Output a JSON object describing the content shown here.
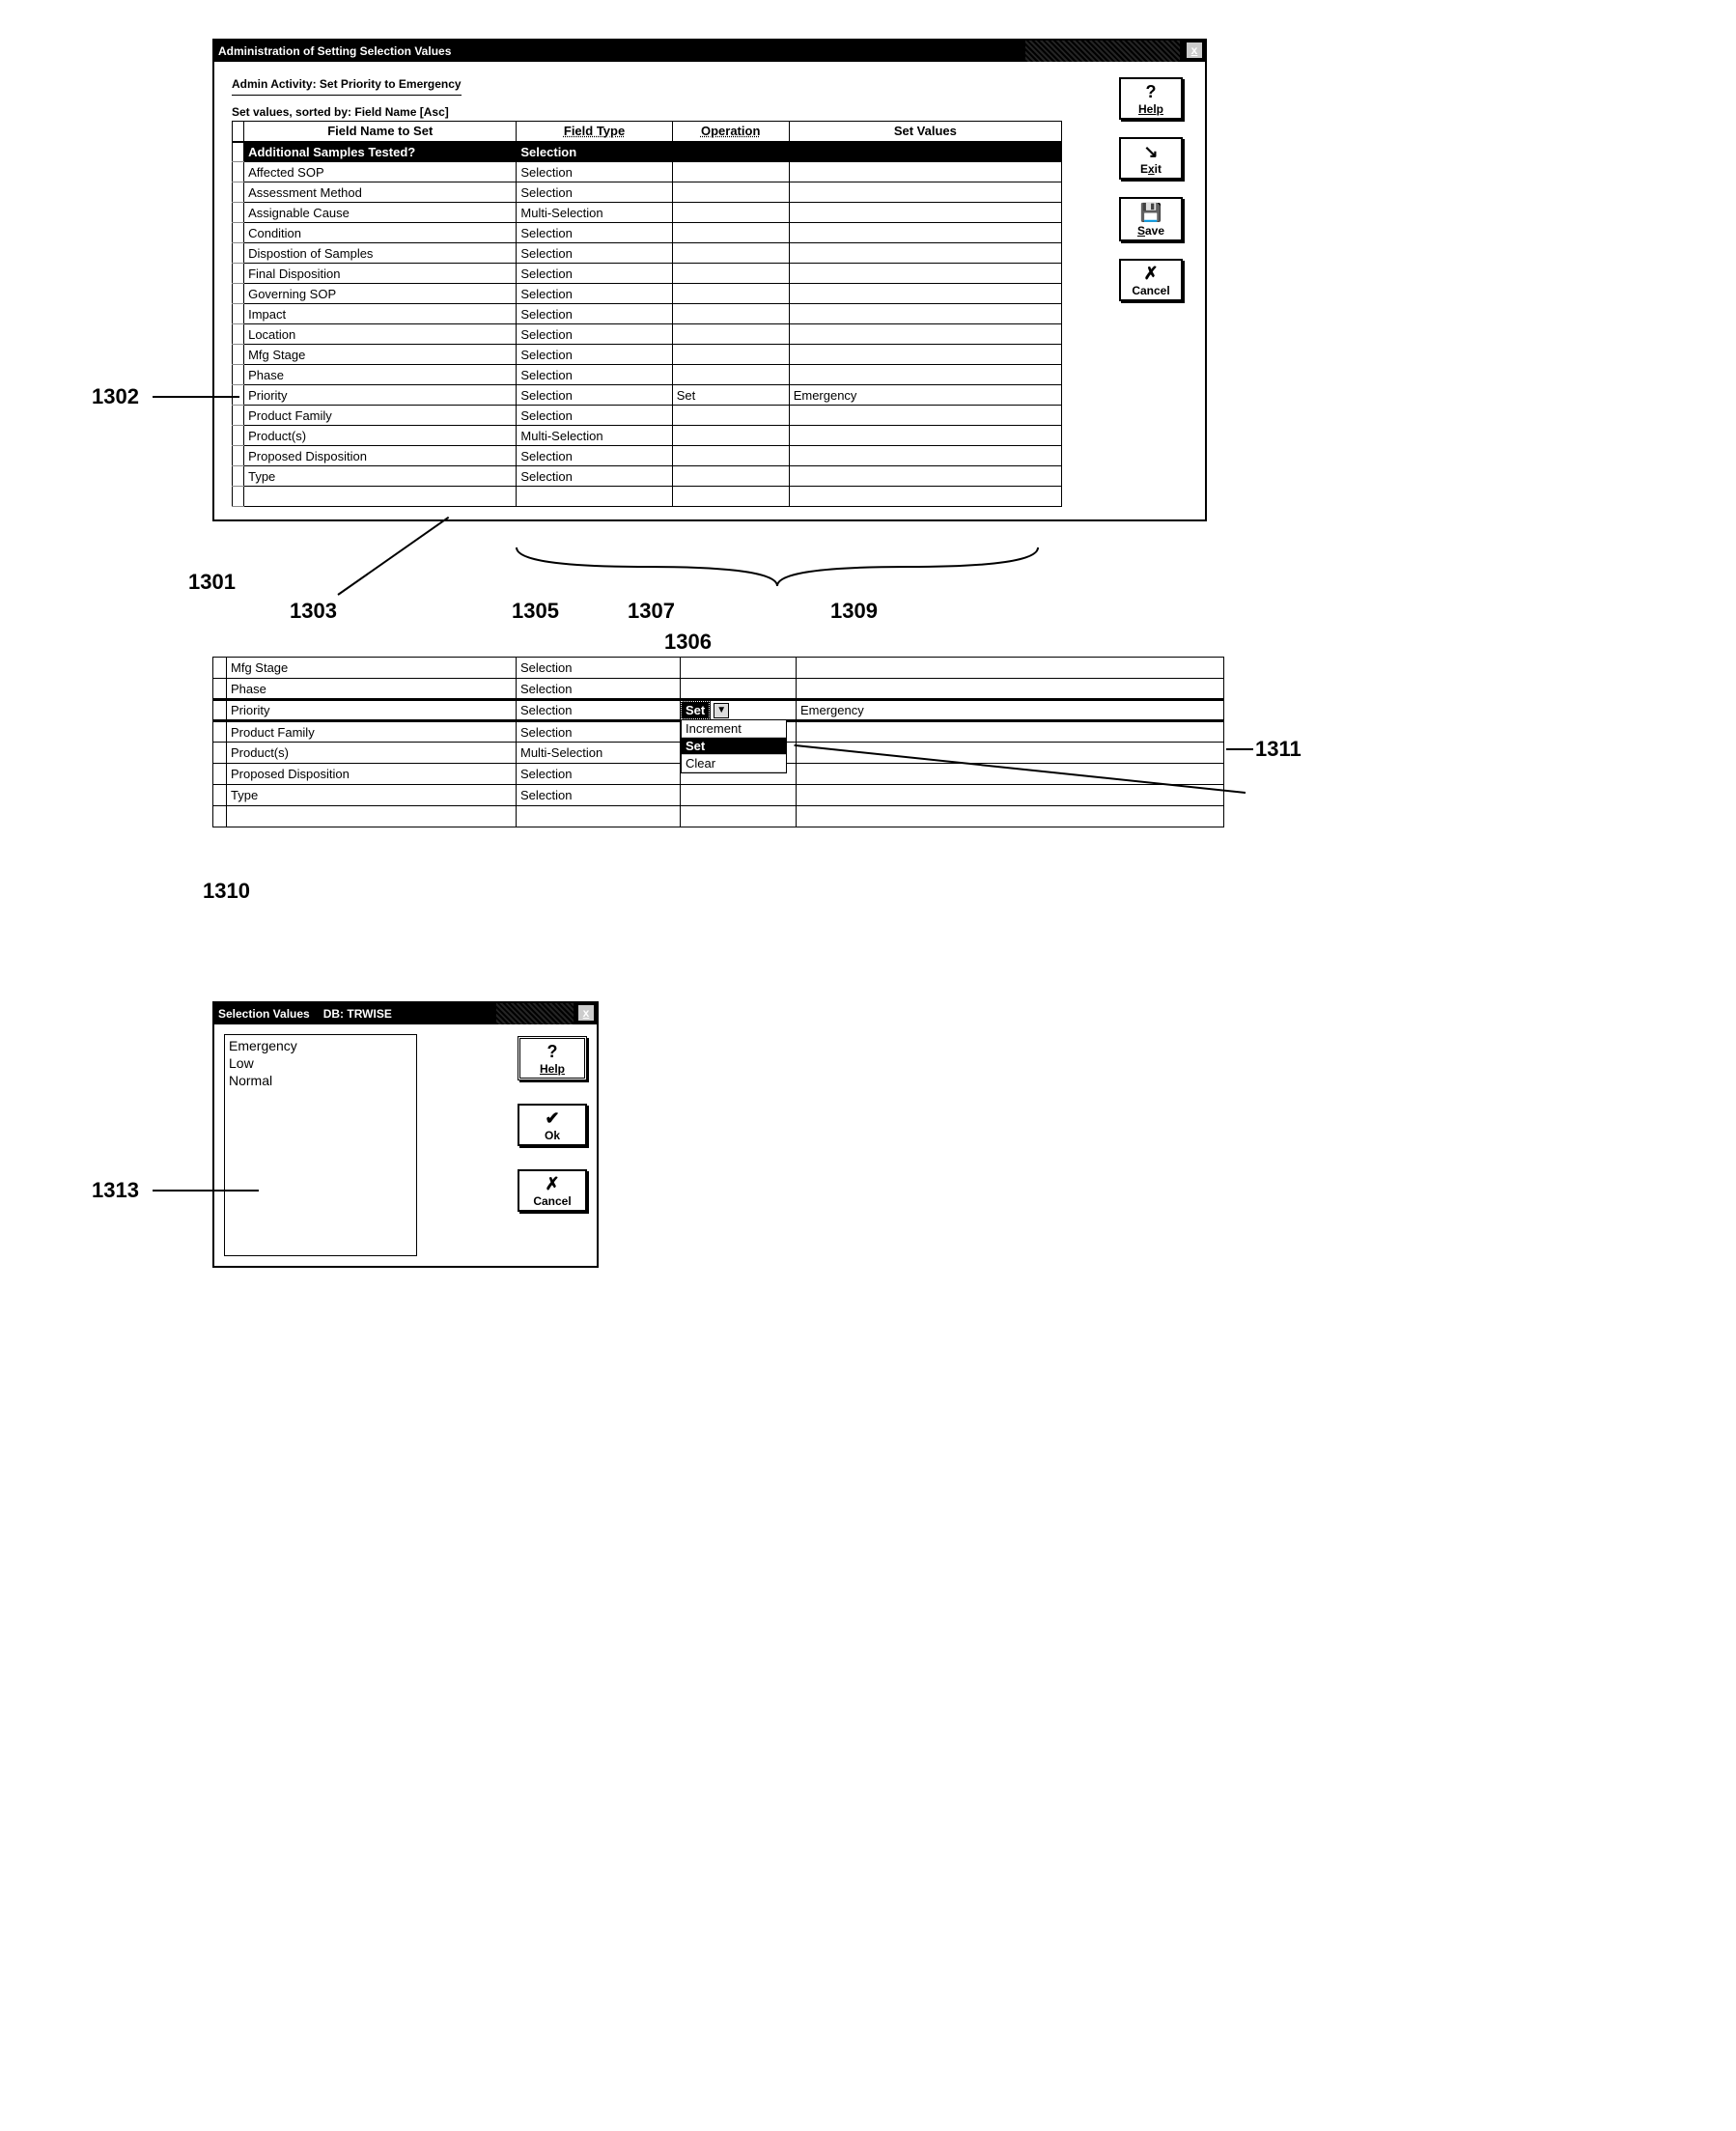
{
  "window1": {
    "title": "Administration of Setting Selection Values",
    "subtitle": "Admin Activity: Set Priority to Emergency",
    "sort_label": "Set values, sorted by: Field Name [Asc]",
    "columns": {
      "name": "Field Name to Set",
      "type": "Field Type",
      "op": "Operation",
      "val": "Set Values"
    },
    "rows": [
      {
        "name": "Additional Samples Tested?",
        "type": "Selection",
        "op": "",
        "val": "",
        "selected": true
      },
      {
        "name": "Affected SOP",
        "type": "Selection",
        "op": "",
        "val": ""
      },
      {
        "name": "Assessment Method",
        "type": "Selection",
        "op": "",
        "val": ""
      },
      {
        "name": "Assignable Cause",
        "type": "Multi-Selection",
        "op": "",
        "val": ""
      },
      {
        "name": "Condition",
        "type": "Selection",
        "op": "",
        "val": ""
      },
      {
        "name": "Dispostion of Samples",
        "type": "Selection",
        "op": "",
        "val": ""
      },
      {
        "name": "Final Disposition",
        "type": "Selection",
        "op": "",
        "val": ""
      },
      {
        "name": "Governing SOP",
        "type": "Selection",
        "op": "",
        "val": ""
      },
      {
        "name": "Impact",
        "type": "Selection",
        "op": "",
        "val": ""
      },
      {
        "name": "Location",
        "type": "Selection",
        "op": "",
        "val": ""
      },
      {
        "name": "Mfg Stage",
        "type": "Selection",
        "op": "",
        "val": ""
      },
      {
        "name": "Phase",
        "type": "Selection",
        "op": "",
        "val": ""
      },
      {
        "name": "Priority",
        "type": "Selection",
        "op": "Set",
        "val": "Emergency"
      },
      {
        "name": "Product Family",
        "type": "Selection",
        "op": "",
        "val": ""
      },
      {
        "name": "Product(s)",
        "type": "Multi-Selection",
        "op": "",
        "val": ""
      },
      {
        "name": "Proposed Disposition",
        "type": "Selection",
        "op": "",
        "val": ""
      },
      {
        "name": "Type",
        "type": "Selection",
        "op": "",
        "val": ""
      },
      {
        "name": "",
        "type": "",
        "op": "",
        "val": ""
      }
    ],
    "buttons": {
      "help": "Help",
      "exit": "Exit",
      "save": "Save",
      "cancel": "Cancel"
    }
  },
  "callouts": {
    "c1301": "1301",
    "c1302": "1302",
    "c1303": "1303",
    "c1305": "1305",
    "c1306": "1306",
    "c1307": "1307",
    "c1309": "1309",
    "c1310": "1310",
    "c1311": "1311",
    "c1313": "1313"
  },
  "snippet": {
    "rows": [
      {
        "name": "Mfg Stage",
        "type": "Selection",
        "op": "",
        "val": ""
      },
      {
        "name": "Phase",
        "type": "Selection",
        "op": "",
        "val": ""
      },
      {
        "name": "Priority",
        "type": "Selection",
        "op": "Set",
        "val": "Emergency",
        "active": true
      },
      {
        "name": "Product Family",
        "type": "Selection",
        "op": "",
        "val": ""
      },
      {
        "name": "Product(s)",
        "type": "Multi-Selection",
        "op": "",
        "val": ""
      },
      {
        "name": "Proposed Disposition",
        "type": "Selection",
        "op": "",
        "val": ""
      },
      {
        "name": "Type",
        "type": "Selection",
        "op": "",
        "val": ""
      },
      {
        "name": "",
        "type": "",
        "op": "",
        "val": ""
      }
    ],
    "dropdown": {
      "options": [
        "Increment",
        "Set",
        "Clear"
      ],
      "selected": "Set"
    }
  },
  "dialog": {
    "title": "Selection Values",
    "db": "DB: TRWISE",
    "items": [
      "Emergency",
      "Low",
      "Normal"
    ],
    "buttons": {
      "help": "Help",
      "ok": "Ok",
      "cancel": "Cancel"
    }
  }
}
